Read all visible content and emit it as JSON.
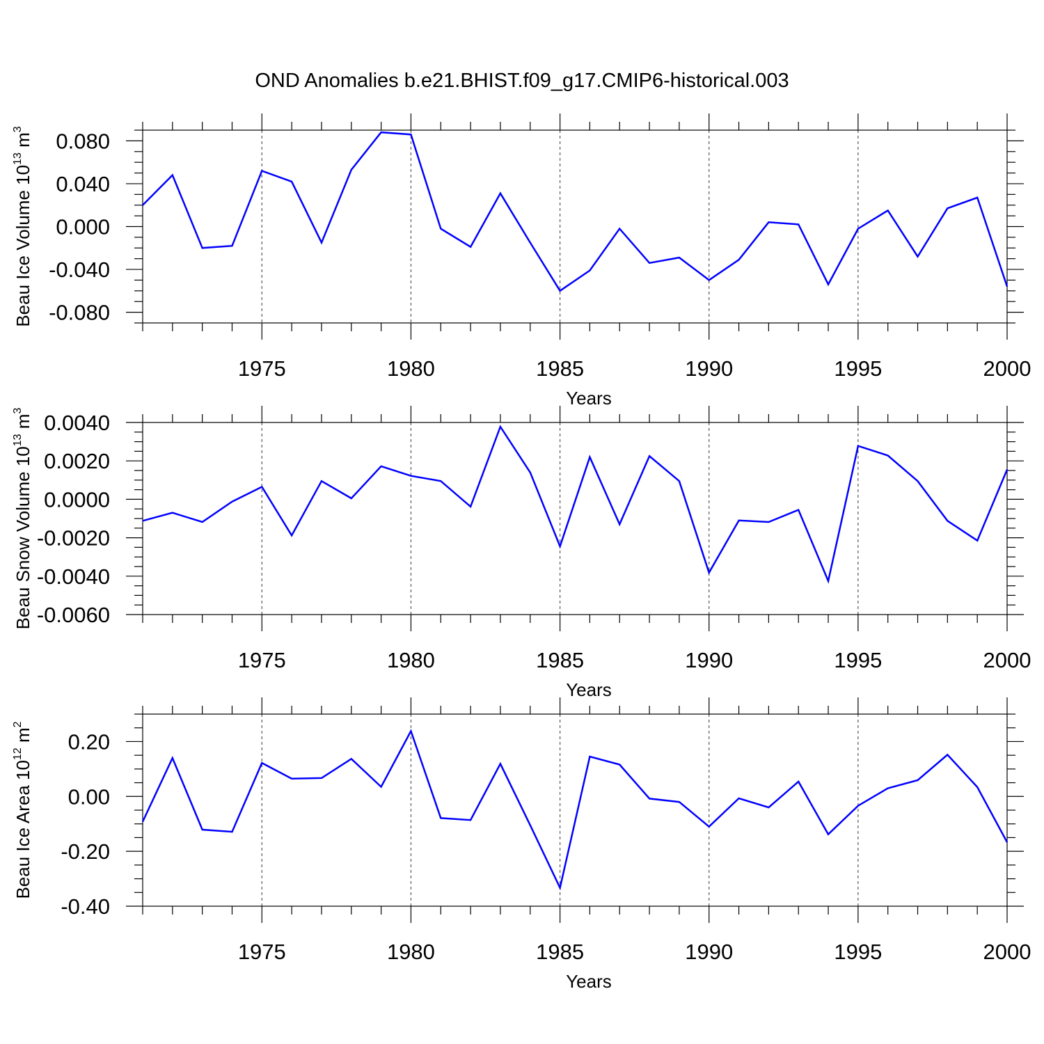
{
  "title": "OND Anomalies b.e21.BHIST.f09_g17.CMIP6-historical.003",
  "chart_data": [
    {
      "type": "line",
      "id": "ice-volume",
      "ylabel_main": "Beau Ice Volume 10",
      "ylabel_exp": "13",
      "ylabel_unit": " m",
      "ylabel_unit_exp": "3",
      "xlabel": "Years",
      "x": [
        1971,
        1972,
        1973,
        1974,
        1975,
        1976,
        1977,
        1978,
        1979,
        1980,
        1981,
        1982,
        1983,
        1984,
        1985,
        1986,
        1987,
        1988,
        1989,
        1990,
        1991,
        1992,
        1993,
        1994,
        1995,
        1996,
        1997,
        1998,
        1999,
        2000
      ],
      "values": [
        0.02,
        0.048,
        -0.02,
        -0.018,
        0.052,
        0.042,
        -0.015,
        0.053,
        0.088,
        0.086,
        -0.002,
        -0.019,
        0.031,
        -0.015,
        -0.06,
        -0.041,
        -0.002,
        -0.034,
        -0.029,
        -0.05,
        -0.031,
        0.004,
        0.002,
        -0.054,
        -0.002,
        0.015,
        -0.028,
        0.017,
        0.027,
        -0.056
      ],
      "xlim": [
        1971,
        2000
      ],
      "ylim": [
        -0.09,
        0.09
      ],
      "yticks": [
        0.08,
        0.04,
        0.0,
        -0.04,
        -0.08
      ],
      "yticklabels": [
        "0.080",
        "0.040",
        "0.000",
        "-0.040",
        "-0.080"
      ],
      "yminor": 0.01,
      "xticks": [
        1975,
        1980,
        1985,
        1990,
        1995,
        2000
      ],
      "xticklabels": [
        "1975",
        "1980",
        "1985",
        "1990",
        "1995",
        "2000"
      ],
      "color": "#0000ff"
    },
    {
      "type": "line",
      "id": "snow-volume",
      "ylabel_main": "Beau Snow Volume 10",
      "ylabel_exp": "13",
      "ylabel_unit": " m",
      "ylabel_unit_exp": "3",
      "xlabel": "Years",
      "x": [
        1971,
        1972,
        1973,
        1974,
        1975,
        1976,
        1977,
        1978,
        1979,
        1980,
        1981,
        1982,
        1983,
        1984,
        1985,
        1986,
        1987,
        1988,
        1989,
        1990,
        1991,
        1992,
        1993,
        1994,
        1995,
        1996,
        1997,
        1998,
        1999,
        2000
      ],
      "values": [
        -0.00112,
        -0.0007,
        -0.00118,
        -0.00012,
        0.00065,
        -0.00188,
        0.00095,
        5e-05,
        0.00172,
        0.00122,
        0.00095,
        -0.00038,
        0.00378,
        0.0014,
        -0.00245,
        0.0022,
        -0.0013,
        0.00225,
        0.00095,
        -0.00382,
        -0.0011,
        -0.00118,
        -0.00055,
        -0.00425,
        0.00278,
        0.00228,
        0.00095,
        -0.00112,
        -0.00215,
        0.00155
      ],
      "xlim": [
        1971,
        2000
      ],
      "ylim": [
        -0.006,
        0.004
      ],
      "yticks": [
        0.004,
        0.002,
        0.0,
        -0.002,
        -0.004,
        -0.006
      ],
      "yticklabels": [
        "0.0040",
        "0.0020",
        "0.0000",
        "-0.0020",
        "-0.0040",
        "-0.0060"
      ],
      "yminor": 0.0005,
      "xticks": [
        1975,
        1980,
        1985,
        1990,
        1995,
        2000
      ],
      "xticklabels": [
        "1975",
        "1980",
        "1985",
        "1990",
        "1995",
        "2000"
      ],
      "color": "#0000ff"
    },
    {
      "type": "line",
      "id": "ice-area",
      "ylabel_main": "Beau Ice Area 10",
      "ylabel_exp": "12",
      "ylabel_unit": " m",
      "ylabel_unit_exp": "2",
      "xlabel": "Years",
      "x": [
        1971,
        1972,
        1973,
        1974,
        1975,
        1976,
        1977,
        1978,
        1979,
        1980,
        1981,
        1982,
        1983,
        1984,
        1985,
        1986,
        1987,
        1988,
        1989,
        1990,
        1991,
        1992,
        1993,
        1994,
        1995,
        1996,
        1997,
        1998,
        1999,
        2000
      ],
      "values": [
        -0.092,
        0.14,
        -0.121,
        -0.129,
        0.122,
        0.065,
        0.067,
        0.137,
        0.035,
        0.238,
        -0.079,
        -0.086,
        0.119,
        -0.105,
        -0.333,
        0.145,
        0.116,
        -0.008,
        -0.02,
        -0.11,
        -0.007,
        -0.04,
        0.054,
        -0.138,
        -0.034,
        0.03,
        0.059,
        0.152,
        0.034,
        -0.167
      ],
      "xlim": [
        1971,
        2000
      ],
      "ylim": [
        -0.4,
        0.3
      ],
      "yticks": [
        0.2,
        0.0,
        -0.2,
        -0.4
      ],
      "yticklabels": [
        "0.20",
        "0.00",
        "-0.20",
        "-0.40"
      ],
      "yminor": 0.05,
      "xticks": [
        1975,
        1980,
        1985,
        1990,
        1995,
        2000
      ],
      "xticklabels": [
        "1975",
        "1980",
        "1985",
        "1990",
        "1995",
        "2000"
      ],
      "color": "#0000ff"
    }
  ]
}
